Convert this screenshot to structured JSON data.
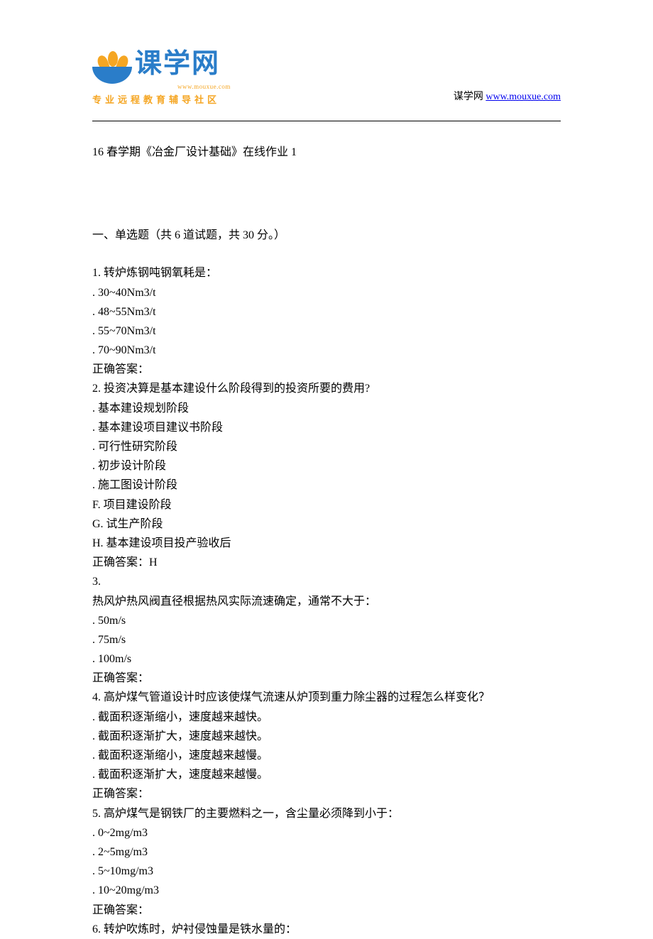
{
  "header": {
    "logo_text": "课学网",
    "logo_url": "www.mouxue.com",
    "logo_tagline": "专业远程教育辅导社区",
    "site_label": "谋学网 ",
    "site_link": "www.mouxue.com"
  },
  "doc": {
    "title": "16 春学期《冶金厂设计基础》在线作业 1",
    "section_header": "一、单选题（共 6 道试题，共 30 分。）",
    "questions": [
      {
        "stem": "1.  转炉炼钢吨钢氧耗是：",
        "options": [
          ".  30~40Nm3/t",
          ".  48~55Nm3/t",
          ".  55~70Nm3/t",
          ".  70~90Nm3/t"
        ],
        "answer": "正确答案："
      },
      {
        "stem": "2.  投资决算是基本建设什么阶段得到的投资所要的费用?",
        "options": [
          ".  基本建设规划阶段",
          ".  基本建设项目建议书阶段",
          ".  可行性研究阶段",
          ".  初步设计阶段",
          ".  施工图设计阶段",
          "F.  项目建设阶段",
          "G.  试生产阶段",
          "H.  基本建设项目投产验收后"
        ],
        "answer": "正确答案：H"
      },
      {
        "stem": "3.",
        "stem2": "热风炉热风阀直径根据热风实际流速确定，通常不大于：",
        "options": [
          ".  50m/s",
          ".  75m/s",
          ".  100m/s"
        ],
        "answer": "正确答案："
      },
      {
        "stem": "4.  高炉煤气管道设计时应该使煤气流速从炉顶到重力除尘器的过程怎么样变化？",
        "options": [
          ".  截面积逐渐缩小，速度越来越快。",
          ".  截面积逐渐扩大，速度越来越快。",
          ".  截面积逐渐缩小，速度越来越慢。",
          ".  截面积逐渐扩大，速度越来越慢。"
        ],
        "answer": "正确答案："
      },
      {
        "stem": "5.  高炉煤气是钢铁厂的主要燃料之一，含尘量必须降到小于：",
        "options": [
          ".  0~2mg/m3",
          ".  2~5mg/m3",
          ".  5~10mg/m3",
          ".  10~20mg/m3"
        ],
        "answer": "正确答案："
      },
      {
        "stem": "6.  转炉吹炼时，炉衬侵蚀量是铁水量的：",
        "options": [],
        "answer": ""
      }
    ]
  }
}
